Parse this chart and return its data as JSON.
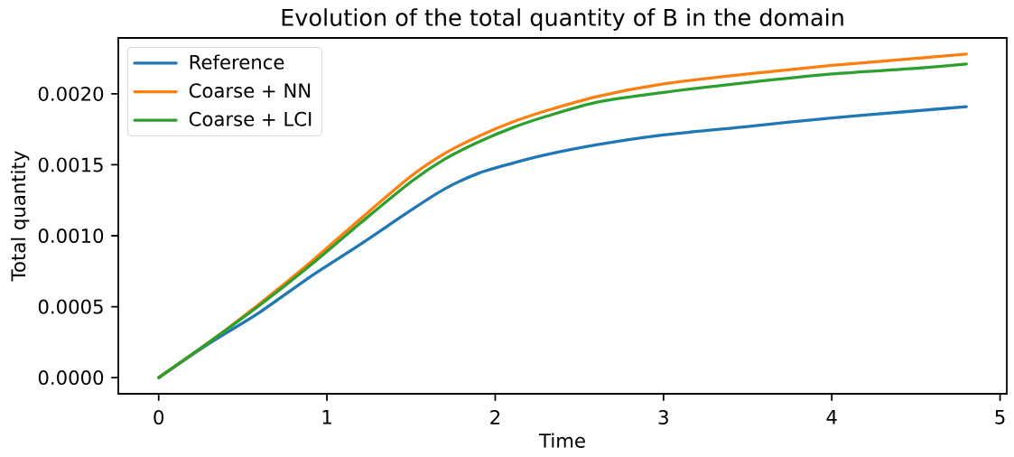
{
  "chart_data": {
    "type": "line",
    "title": "Evolution of the total quantity of B in the domain",
    "xlabel": "Time",
    "ylabel": "Total quantity",
    "x": [
      0,
      0.3,
      0.6,
      0.9,
      1.2,
      1.5,
      1.7,
      1.9,
      2.1,
      2.3,
      2.6,
      3.0,
      3.5,
      4.0,
      4.5,
      4.8
    ],
    "series": [
      {
        "name": "Reference",
        "color": "#1f77b4",
        "values": [
          0,
          0.00024,
          0.00046,
          0.00071,
          0.00094,
          0.00118,
          0.00133,
          0.00144,
          0.00151,
          0.00157,
          0.00164,
          0.00171,
          0.00177,
          0.00183,
          0.00188,
          0.00191
        ]
      },
      {
        "name": "Coarse + NN",
        "color": "#ff7f0e",
        "values": [
          0,
          0.00025,
          0.00052,
          0.00081,
          0.00112,
          0.00142,
          0.00158,
          0.0017,
          0.0018,
          0.00188,
          0.00198,
          0.00207,
          0.00214,
          0.0022,
          0.00225,
          0.00228
        ]
      },
      {
        "name": "Coarse + LCI",
        "color": "#2ca02c",
        "values": [
          0,
          0.00025,
          0.00051,
          0.00079,
          0.00109,
          0.00138,
          0.00154,
          0.00166,
          0.00176,
          0.00184,
          0.00194,
          0.00201,
          0.00208,
          0.00214,
          0.00218,
          0.00221
        ]
      }
    ],
    "xlim": [
      -0.24,
      5.04
    ],
    "ylim": [
      -0.000114,
      0.002394
    ],
    "xticks": [
      0,
      1,
      2,
      3,
      4,
      5
    ],
    "yticks": [
      {
        "value": 0,
        "label": "0.0000"
      },
      {
        "value": 0.0005,
        "label": "0.0005"
      },
      {
        "value": 0.001,
        "label": "0.0010"
      },
      {
        "value": 0.0015,
        "label": "0.0015"
      },
      {
        "value": 0.002,
        "label": "0.0020"
      }
    ],
    "legend": "top left"
  }
}
